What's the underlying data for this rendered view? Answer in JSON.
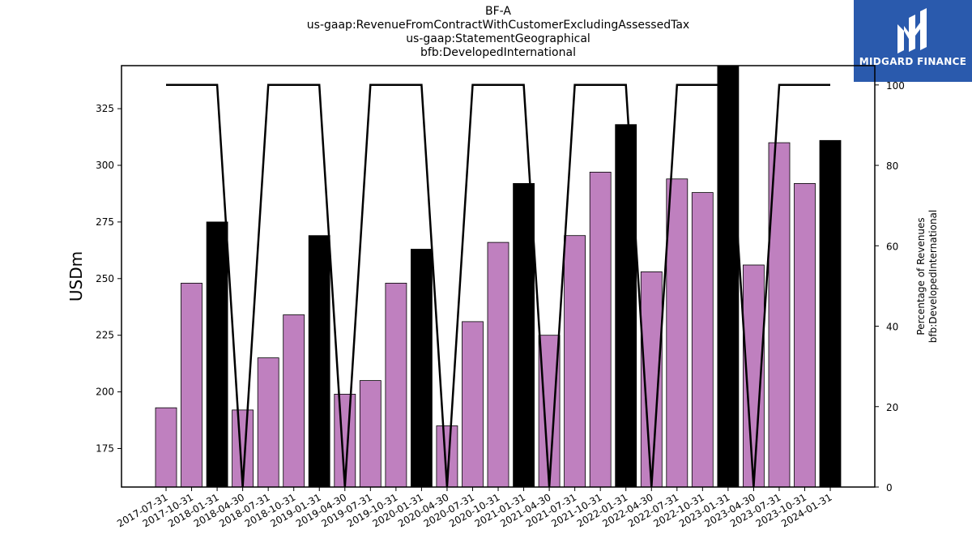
{
  "chart_data": {
    "type": "bar",
    "title_lines": [
      "BF-A",
      "us-gaap:RevenueFromContractWithCustomerExcludingAssessedTax",
      "us-gaap:StatementGeographical",
      "bfb:DevelopedInternational"
    ],
    "ylabel": "USDm",
    "y2label_lines": [
      "Percentage of Revenues",
      "bfb:DevelopedInternational"
    ],
    "categories": [
      "2017-07-31",
      "2017-10-31",
      "2018-01-31",
      "2018-04-30",
      "2018-07-31",
      "2018-10-31",
      "2019-01-31",
      "2019-04-30",
      "2019-07-31",
      "2019-10-31",
      "2020-01-31",
      "2020-04-30",
      "2020-07-31",
      "2020-10-31",
      "2021-01-31",
      "2021-04-30",
      "2021-07-31",
      "2021-10-31",
      "2022-01-31",
      "2022-04-30",
      "2022-07-31",
      "2022-10-31",
      "2023-01-31",
      "2023-04-30",
      "2023-07-31",
      "2023-10-31",
      "2024-01-31"
    ],
    "series": [
      {
        "type": "bar",
        "values": [
          193,
          248,
          275,
          192,
          215,
          234,
          269,
          199,
          205,
          248,
          263,
          185,
          231,
          266,
          292,
          225,
          269,
          297,
          318,
          253,
          294,
          288,
          345,
          256,
          310,
          292,
          311
        ],
        "highlight": [
          false,
          false,
          true,
          false,
          false,
          false,
          true,
          false,
          false,
          false,
          true,
          false,
          false,
          false,
          true,
          false,
          false,
          false,
          true,
          false,
          false,
          false,
          true,
          false,
          false,
          false,
          true
        ],
        "color": "#bf80bf",
        "highlight_color": "#000000"
      },
      {
        "type": "line",
        "axis": "right",
        "values": [
          100,
          100,
          100,
          0,
          100,
          100,
          100,
          0,
          100,
          100,
          100,
          0,
          100,
          100,
          100,
          0,
          100,
          100,
          100,
          0,
          100,
          100,
          100,
          0,
          100,
          100,
          100
        ],
        "color": "#000000"
      }
    ],
    "ylim": [
      158,
      344
    ],
    "yticks": [
      175,
      200,
      225,
      250,
      275,
      300,
      325
    ],
    "y2lim": [
      0,
      104.8
    ],
    "y2ticks": [
      0,
      20,
      40,
      60,
      80,
      100
    ]
  },
  "logo": {
    "text": "MIDGARD FINANCE",
    "bg": "#2a5aad"
  }
}
